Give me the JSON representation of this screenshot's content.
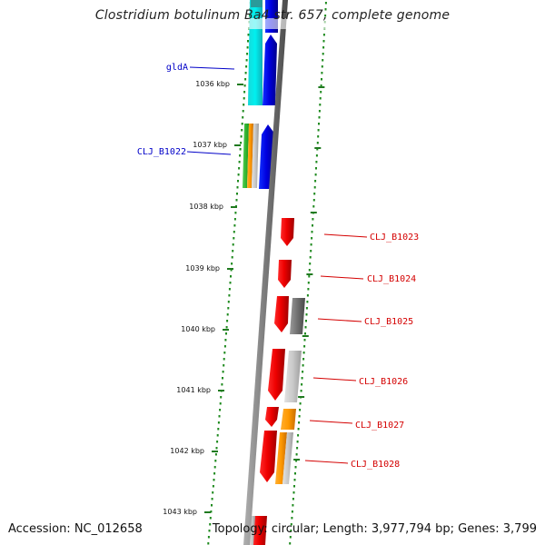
{
  "title": "Clostridium botulinum Ba4 str. 657, complete genome",
  "footer": {
    "accession": "Accession: NC_012658",
    "topology": "Topology: circular; Length: 3,977,794 bp; Genes: 3,799"
  },
  "colors": {
    "backbone": "#7a7a7a",
    "tick": "#1f7a1f",
    "dots": "#1f8a1f",
    "forward_label": "#0000c8",
    "reverse_label": "#d40000"
  },
  "ticks": [
    "1036 kbp",
    "1037 kbp",
    "1038 kbp",
    "1039 kbp",
    "1040 kbp",
    "1041 kbp",
    "1042 kbp",
    "1043 kbp"
  ],
  "gene_labels": [
    {
      "text": "gldA",
      "strand": "forward"
    },
    {
      "text": "CLJ_B1022",
      "strand": "forward"
    },
    {
      "text": "CLJ_B1023",
      "strand": "reverse"
    },
    {
      "text": "CLJ_B1024",
      "strand": "reverse"
    },
    {
      "text": "CLJ_B1025",
      "strand": "reverse"
    },
    {
      "text": "CLJ_B1026",
      "strand": "reverse"
    },
    {
      "text": "CLJ_B1027",
      "strand": "reverse"
    },
    {
      "text": "CLJ_B1028",
      "strand": "reverse"
    }
  ]
}
